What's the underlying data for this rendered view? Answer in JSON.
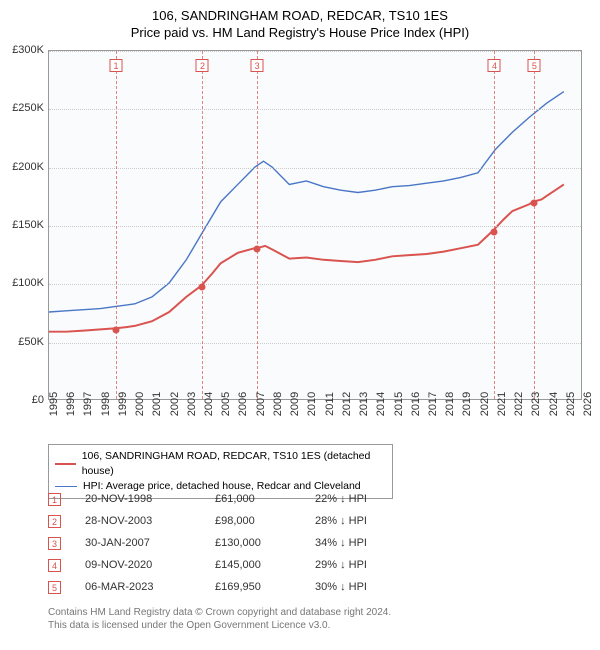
{
  "title": "106, SANDRINGHAM ROAD, REDCAR, TS10 1ES",
  "subtitle": "Price paid vs. HM Land Registry's House Price Index (HPI)",
  "background_color": "#fafbfc",
  "grid_color": "#cccccc",
  "border_color": "#999999",
  "colors": {
    "series_red": "#d9534f",
    "series_blue": "#4a76c7"
  },
  "y_axis": {
    "min": 0,
    "max": 300000,
    "tick_step": 50000,
    "tick_labels": [
      "£0",
      "£50K",
      "£100K",
      "£150K",
      "£200K",
      "£250K",
      "£300K"
    ]
  },
  "x_axis": {
    "min": 1995,
    "max": 2026,
    "ticks": [
      1995,
      1996,
      1997,
      1998,
      1999,
      2000,
      2001,
      2002,
      2003,
      2004,
      2005,
      2006,
      2007,
      2008,
      2009,
      2010,
      2011,
      2012,
      2013,
      2014,
      2015,
      2016,
      2017,
      2018,
      2019,
      2020,
      2021,
      2022,
      2023,
      2024,
      2025,
      2026
    ]
  },
  "series_red": {
    "label": "106, SANDRINGHAM ROAD, REDCAR, TS10 1ES (detached house)",
    "line_width": 2,
    "points": [
      [
        1995.0,
        58000
      ],
      [
        1996.0,
        58000
      ],
      [
        1997.0,
        59000
      ],
      [
        1998.0,
        60000
      ],
      [
        1998.9,
        61000
      ],
      [
        1999.5,
        62000
      ],
      [
        2000.0,
        63000
      ],
      [
        2001.0,
        67000
      ],
      [
        2002.0,
        75000
      ],
      [
        2003.0,
        88000
      ],
      [
        2003.9,
        98000
      ],
      [
        2004.5,
        108000
      ],
      [
        2005.0,
        117000
      ],
      [
        2006.0,
        126000
      ],
      [
        2007.0,
        130000
      ],
      [
        2007.1,
        130000
      ],
      [
        2007.6,
        132000
      ],
      [
        2008.0,
        129000
      ],
      [
        2009.0,
        121000
      ],
      [
        2010.0,
        122000
      ],
      [
        2011.0,
        120000
      ],
      [
        2012.0,
        119000
      ],
      [
        2013.0,
        118000
      ],
      [
        2014.0,
        120000
      ],
      [
        2015.0,
        123000
      ],
      [
        2016.0,
        124000
      ],
      [
        2017.0,
        125000
      ],
      [
        2018.0,
        127000
      ],
      [
        2019.0,
        130000
      ],
      [
        2020.0,
        133000
      ],
      [
        2020.86,
        145000
      ],
      [
        2021.5,
        155000
      ],
      [
        2022.0,
        162000
      ],
      [
        2023.0,
        168000
      ],
      [
        2023.18,
        169950
      ],
      [
        2023.7,
        172000
      ],
      [
        2024.0,
        175000
      ],
      [
        2024.5,
        180000
      ],
      [
        2025.0,
        185000
      ]
    ]
  },
  "series_blue": {
    "label": "HPI: Average price, detached house, Redcar and Cleveland",
    "line_width": 1.4,
    "points": [
      [
        1995.0,
        75000
      ],
      [
        1996.0,
        76000
      ],
      [
        1997.0,
        77000
      ],
      [
        1998.0,
        78000
      ],
      [
        1999.0,
        80000
      ],
      [
        2000.0,
        82000
      ],
      [
        2001.0,
        88000
      ],
      [
        2002.0,
        100000
      ],
      [
        2003.0,
        120000
      ],
      [
        2004.0,
        145000
      ],
      [
        2005.0,
        170000
      ],
      [
        2006.0,
        185000
      ],
      [
        2007.0,
        200000
      ],
      [
        2007.5,
        205000
      ],
      [
        2008.0,
        200000
      ],
      [
        2009.0,
        185000
      ],
      [
        2010.0,
        188000
      ],
      [
        2011.0,
        183000
      ],
      [
        2012.0,
        180000
      ],
      [
        2013.0,
        178000
      ],
      [
        2014.0,
        180000
      ],
      [
        2015.0,
        183000
      ],
      [
        2016.0,
        184000
      ],
      [
        2017.0,
        186000
      ],
      [
        2018.0,
        188000
      ],
      [
        2019.0,
        191000
      ],
      [
        2020.0,
        195000
      ],
      [
        2021.0,
        215000
      ],
      [
        2022.0,
        230000
      ],
      [
        2023.0,
        243000
      ],
      [
        2024.0,
        255000
      ],
      [
        2025.0,
        265000
      ]
    ]
  },
  "events": [
    {
      "n": "1",
      "year": 1998.89,
      "date": "20-NOV-1998",
      "price": "£61,000",
      "delta": "22% ↓ HPI",
      "value": 61000
    },
    {
      "n": "2",
      "year": 2003.91,
      "date": "28-NOV-2003",
      "price": "£98,000",
      "delta": "28% ↓ HPI",
      "value": 98000
    },
    {
      "n": "3",
      "year": 2007.08,
      "date": "30-JAN-2007",
      "price": "£130,000",
      "delta": "34% ↓ HPI",
      "value": 130000
    },
    {
      "n": "4",
      "year": 2020.86,
      "date": "09-NOV-2020",
      "price": "£145,000",
      "delta": "29% ↓ HPI",
      "value": 145000
    },
    {
      "n": "5",
      "year": 2023.18,
      "date": "06-MAR-2023",
      "price": "£169,950",
      "delta": "30% ↓ HPI",
      "value": 169950
    }
  ],
  "footer_line1": "Contains HM Land Registry data © Crown copyright and database right 2024.",
  "footer_line2": "This data is licensed under the Open Government Licence v3.0."
}
